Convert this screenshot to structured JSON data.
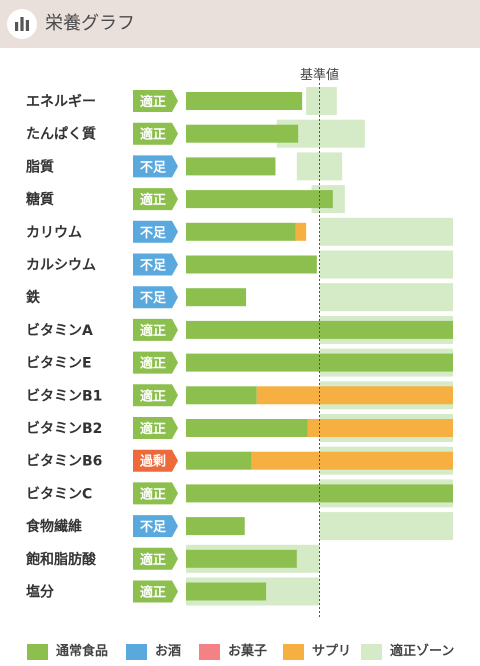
{
  "header": {
    "title": "栄養グラフ",
    "icon": "bar-chart-icon"
  },
  "chart_data": {
    "type": "bar",
    "orientation": "horizontal",
    "stacked": true,
    "reference_label": "基準値",
    "reference_value": 100,
    "xlim": [
      0,
      200
    ],
    "categories": [
      "エネルギー",
      "たんぱく質",
      "脂質",
      "糖質",
      "カリウム",
      "カルシウム",
      "鉄",
      "ビタミンA",
      "ビタミンE",
      "ビタミンB1",
      "ビタミンB2",
      "ビタミンB6",
      "ビタミンC",
      "食物繊維",
      "飽和脂肪酸",
      "塩分"
    ],
    "status": [
      "適正",
      "適正",
      "不足",
      "適正",
      "不足",
      "不足",
      "不足",
      "適正",
      "適正",
      "適正",
      "適正",
      "過剰",
      "適正",
      "不足",
      "適正",
      "適正"
    ],
    "series": [
      {
        "name": "通常食品",
        "values": [
          87,
          84,
          67,
          110,
          82,
          98,
          45,
          200,
          200,
          53,
          91,
          49,
          200,
          44,
          83,
          60
        ]
      },
      {
        "name": "お酒",
        "values": [
          0,
          0,
          0,
          0,
          0,
          0,
          0,
          0,
          0,
          0,
          0,
          0,
          0,
          0,
          0,
          0
        ]
      },
      {
        "name": "お菓子",
        "values": [
          0,
          0,
          0,
          0,
          0,
          0,
          0,
          0,
          0,
          0,
          0,
          0,
          0,
          0,
          0,
          0
        ]
      },
      {
        "name": "サプリ",
        "values": [
          0,
          0,
          0,
          0,
          8,
          0,
          0,
          0,
          0,
          147,
          109,
          151,
          0,
          0,
          0,
          0
        ]
      }
    ],
    "optimal_zone": [
      [
        90,
        113
      ],
      [
        68,
        134
      ],
      [
        83,
        117
      ],
      [
        94,
        119
      ],
      [
        100,
        200
      ],
      [
        100,
        200
      ],
      [
        100,
        200
      ],
      [
        100,
        200
      ],
      [
        100,
        200
      ],
      [
        100,
        200
      ],
      [
        100,
        200
      ],
      [
        100,
        200
      ],
      [
        100,
        200
      ],
      [
        100,
        200
      ],
      [
        0,
        100
      ],
      [
        0,
        100
      ]
    ],
    "legend": [
      {
        "name": "通常食品",
        "color": "#8cbf4e"
      },
      {
        "name": "お酒",
        "color": "#5aa9de"
      },
      {
        "name": "お菓子",
        "color": "#f48183"
      },
      {
        "name": "サプリ",
        "color": "#f5b041"
      },
      {
        "name": "適正ゾーン",
        "color": "#d5ebc8"
      }
    ],
    "status_colors": {
      "適正": "#8cbf4e",
      "不足": "#5aa9de",
      "過剰": "#ef6a3a"
    },
    "legend_position": "bottom",
    "grid": false
  }
}
